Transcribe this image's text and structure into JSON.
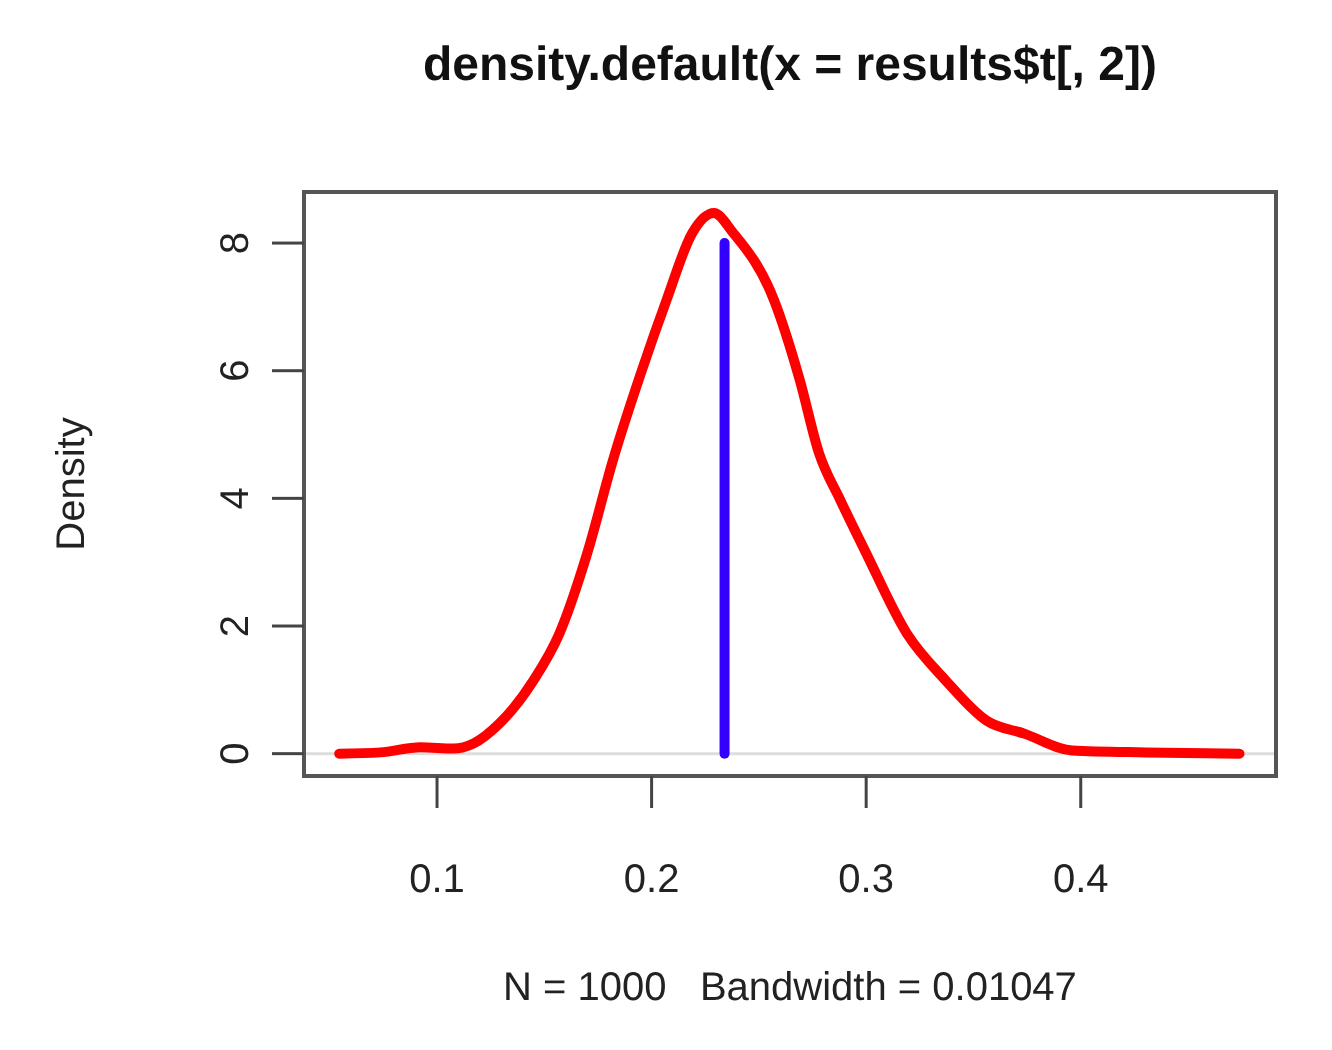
{
  "chart_data": {
    "type": "line",
    "title": "density.default(x = results$t[, 2])",
    "xlabel": "N = 1000   Bandwidth = 0.01047",
    "ylabel": "Density",
    "xlim": [
      0.038,
      0.491
    ],
    "ylim": [
      -0.35,
      8.8
    ],
    "xticks": [
      0.1,
      0.2,
      0.3,
      0.4
    ],
    "yticks": [
      0,
      2,
      4,
      6,
      8
    ],
    "grid": false,
    "marker": "none",
    "line_style": "solid",
    "ref_lines": [
      {
        "axis": "y",
        "value": 0,
        "color": "#dddddd"
      }
    ],
    "series": [
      {
        "color": "#ff0000",
        "x": [
          0.0544,
          0.0736,
          0.0922,
          0.1078,
          0.117,
          0.129,
          0.145,
          0.157,
          0.17,
          0.182,
          0.195,
          0.207,
          0.219,
          0.229,
          0.238,
          0.257,
          0.269,
          0.278,
          0.288,
          0.3,
          0.319,
          0.337,
          0.356,
          0.374,
          0.396,
          0.43,
          0.474
        ],
        "values": [
          0,
          0.02,
          0.1,
          0.08,
          0.16,
          0.47,
          1.15,
          1.88,
          3.14,
          4.6,
          5.96,
          7.11,
          8.16,
          8.47,
          8.16,
          7.11,
          5.86,
          4.71,
          3.97,
          3.14,
          1.88,
          1.15,
          0.52,
          0.31,
          0.05,
          0.02,
          0
        ]
      },
      {
        "color": "#3300ff",
        "x": [
          0.234,
          0.234
        ],
        "values": [
          0,
          8.0
        ]
      }
    ]
  }
}
